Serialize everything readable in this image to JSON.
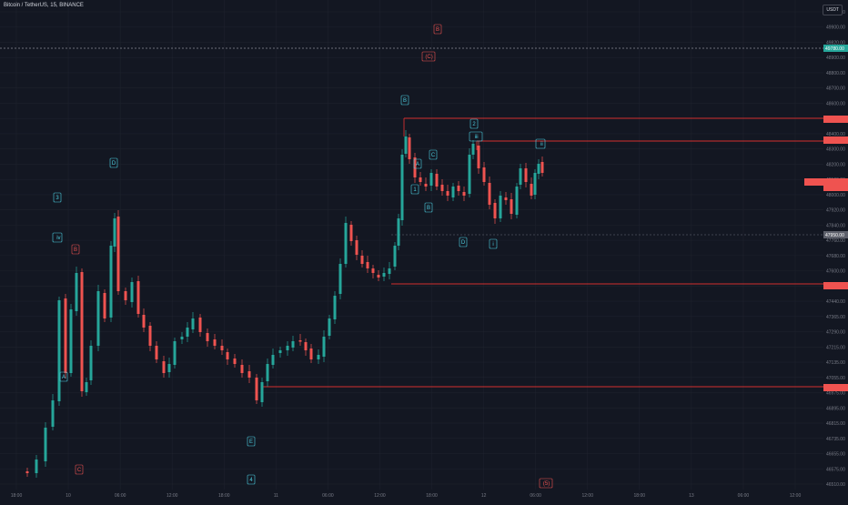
{
  "header": {
    "title": "Bitcoin / TetherUS, 15, BINANCE",
    "currency": "USDT"
  },
  "colors": {
    "background": "#131722",
    "up": "#26a69a",
    "down": "#ef5350",
    "grid": "#1e222d",
    "zone_line": "#d32f2f",
    "label_cyan_text": "#4dd0e1",
    "label_red_text": "#ef5350",
    "axis_text": "#787b86",
    "price_tag": "#26a69a"
  },
  "price_axis": {
    "ticks": [
      "49980.00",
      "49900.00",
      "49820.00",
      "48900.00",
      "48800.00",
      "48700.00",
      "48600.00",
      "48500.00",
      "48400.00",
      "48300.00",
      "48200.00",
      "48100.00",
      "48000.00",
      "47920.00",
      "47840.00",
      "47760.00",
      "47680.00",
      "47600.00",
      "47520.00",
      "47440.00",
      "47365.00",
      "47290.00",
      "47215.00",
      "47135.00",
      "47055.00",
      "46975.00",
      "46895.00",
      "46815.00",
      "46735.00",
      "46655.00",
      "46575.00",
      "46510.00"
    ]
  },
  "time_axis": {
    "ticks": [
      "18:00",
      "10",
      "06:00",
      "12:00",
      "18:00",
      "11",
      "06:00",
      "12:00",
      "18:00",
      "12",
      "06:00",
      "12:00",
      "18:00",
      "13",
      "06:00",
      "12:00"
    ]
  },
  "current_price_label": "49780.00",
  "dashed_price_label": "47950.00",
  "wave_labels": [
    {
      "text": "B",
      "color": "red"
    },
    {
      "text": "(C)",
      "color": "red"
    },
    {
      "text": "B",
      "color": "cyan"
    },
    {
      "text": "2",
      "color": "cyan"
    },
    {
      "text": "ii",
      "color": "cyan"
    },
    {
      "text": "iii",
      "color": "cyan"
    },
    {
      "text": "D",
      "color": "cyan"
    },
    {
      "text": "3",
      "color": "cyan"
    },
    {
      "text": "C",
      "color": "cyan"
    },
    {
      "text": "A",
      "color": "cyan"
    },
    {
      "text": "1",
      "color": "cyan"
    },
    {
      "text": "B",
      "color": "cyan"
    },
    {
      "text": "iv",
      "color": "cyan"
    },
    {
      "text": "B",
      "color": "red"
    },
    {
      "text": "D",
      "color": "cyan"
    },
    {
      "text": "i",
      "color": "cyan"
    },
    {
      "text": "A",
      "color": "cyan"
    },
    {
      "text": "E",
      "color": "cyan"
    },
    {
      "text": "C",
      "color": "red"
    },
    {
      "text": "4",
      "color": "cyan"
    },
    {
      "text": "(5)",
      "color": "red"
    }
  ]
}
